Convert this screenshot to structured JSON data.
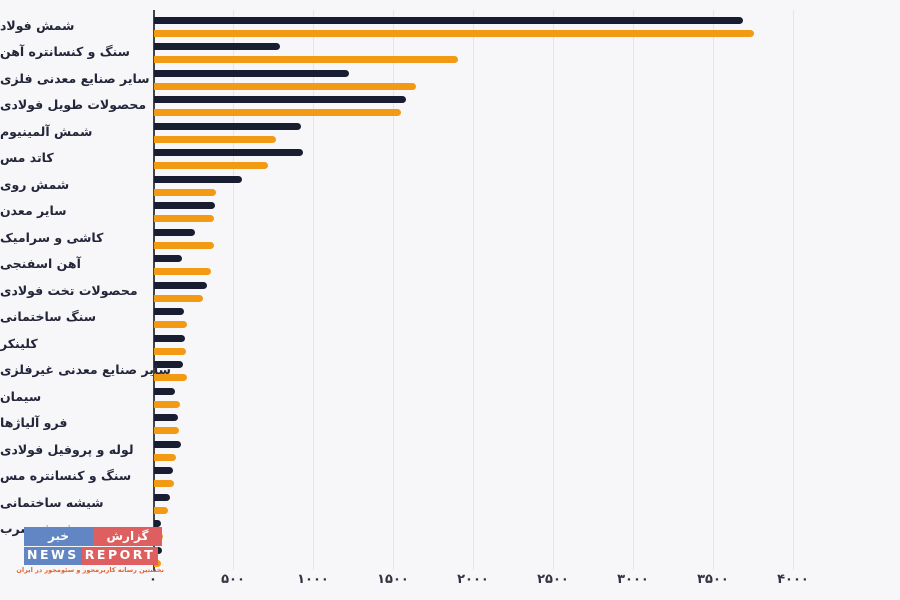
{
  "chart_data": {
    "type": "bar",
    "orientation": "horizontal",
    "title": "",
    "xlabel": "",
    "ylabel": "",
    "xlim": [
      0,
      4000
    ],
    "grid": true,
    "legend": false,
    "categories": [
      "شمش فولاد",
      "سنگ و کنسانتره آهن",
      "سایر صنایع معدنی فلزی",
      "محصولات طویل فولادی",
      "شمش آلمینیوم",
      "کاتد مس",
      "شمش روی",
      "سایر معدن",
      "کاشی و سرامیک",
      "آهن اسفنجی",
      "محصولات تخت فولادی",
      "سنگ ساختمانی",
      "کلینکر",
      "سایر صنایع معدنی غیرفلزی",
      "سیمان",
      "فرو آلیاژها",
      "لوله و پروفیل فولادی",
      "سنگ و کنسانتره مس",
      "شیشه ساختمانی",
      "شمش سرب",
      ""
    ],
    "series": [
      {
        "name": "dark-series",
        "color": "#191d32",
        "values": [
          3680,
          790,
          1220,
          1575,
          920,
          930,
          550,
          380,
          255,
          175,
          330,
          190,
          195,
          180,
          130,
          150,
          170,
          120,
          100,
          45,
          50
        ]
      },
      {
        "name": "orange-series",
        "color": "#f39a14",
        "values": [
          3750,
          1900,
          1640,
          1545,
          760,
          710,
          390,
          375,
          375,
          355,
          305,
          205,
          200,
          205,
          165,
          155,
          140,
          125,
          90,
          55,
          45
        ]
      }
    ],
    "x_ticks": [
      {
        "value": 0,
        "label": "۰"
      },
      {
        "value": 500,
        "label": "۵۰۰"
      },
      {
        "value": 1000,
        "label": "۱۰۰۰"
      },
      {
        "value": 1500,
        "label": "۱۵۰۰"
      },
      {
        "value": 2000,
        "label": "۲۰۰۰"
      },
      {
        "value": 2500,
        "label": "۲۵۰۰"
      },
      {
        "value": 3000,
        "label": "۳۰۰۰"
      },
      {
        "value": 3500,
        "label": "۳۵۰۰"
      },
      {
        "value": 4000,
        "label": "۴۰۰۰"
      }
    ]
  },
  "watermark": {
    "line1_word_right": "گزارش",
    "line1_word_left": "خبر",
    "line2_word_left": "NEWS",
    "line2_word_right": "REPORT",
    "tagline": "نخستین رسانه کاربرمحور و سئومحور در ایران",
    "colors": {
      "red_tile": "#dd5f5f",
      "blue_tile": "#6286c3",
      "tagline_text": "#e0632f"
    }
  },
  "colors": {
    "background": "#f7f7f9",
    "gridline": "#e4e4e9",
    "axis": "#43454e",
    "label_text": "#23263a",
    "dark_bar": "#191d32",
    "orange_bar": "#f39a14"
  }
}
